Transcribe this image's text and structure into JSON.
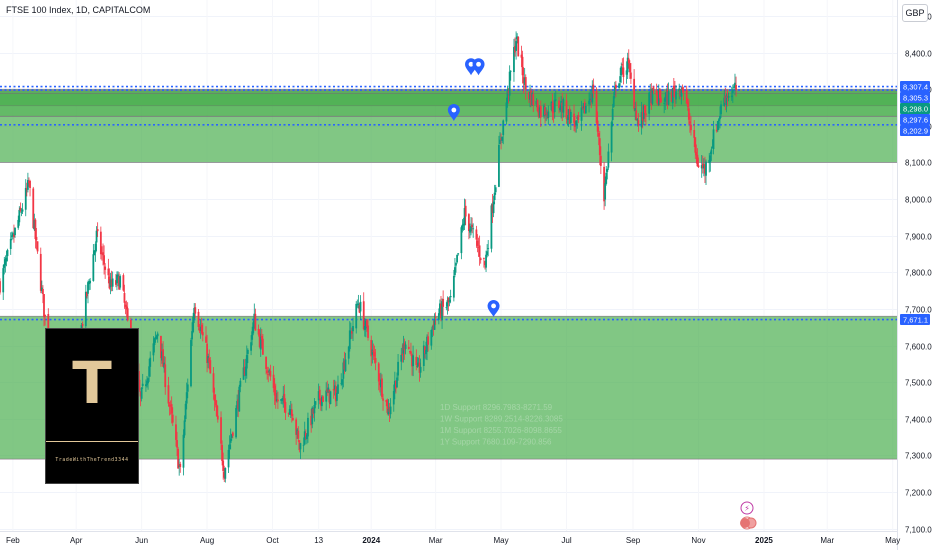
{
  "header": {
    "title": "FTSE 100 Index, 1D, CAPITALCOM",
    "currency": "GBP"
  },
  "logo": {
    "letter": "T",
    "text": "TradeWithTheTrend3344"
  },
  "chart_data": {
    "type": "candlestick",
    "ylim": [
      7080,
      8530
    ],
    "y_ticks": [
      "8,500.0",
      "8,400.0",
      "8,300.0",
      "8,200.0",
      "8,100.0",
      "8,000.0",
      "7,900.0",
      "7,800.0",
      "7,700.0",
      "7,600.0",
      "7,500.0",
      "7,400.0",
      "7,300.0",
      "7,200.0",
      "7,100.0"
    ],
    "x_ticks": [
      "Feb",
      "Apr",
      "Jun",
      "Aug",
      "Oct",
      "13",
      "2024",
      "Mar",
      "May",
      "Jul",
      "Sep",
      "Nov",
      "2025",
      "Mar",
      "May"
    ],
    "x_tick_bold": [
      "2024",
      "2025"
    ],
    "price_labels": [
      {
        "value": 8307.4,
        "text": "8,307.4",
        "color": "#2962ff"
      },
      {
        "value": 8305.3,
        "text": "8,305.3",
        "color": "#2962ff"
      },
      {
        "value": 8298.0,
        "text": "8,298.0",
        "color": "#089981"
      },
      {
        "value": 8297.6,
        "text": "8,297.6",
        "color": "#2962ff"
      },
      {
        "value": 8202.9,
        "text": "8,202.9",
        "color": "#2962ff"
      },
      {
        "value": 7671.1,
        "text": "7,671.1",
        "color": "#2962ff"
      }
    ],
    "dotted_levels": [
      8307.4,
      8297.6,
      8202.9,
      7671.1
    ],
    "zones": [
      {
        "from": 8100,
        "to": 8300,
        "color": "#4caf50",
        "opacity": 0.7
      },
      {
        "from": 8255,
        "to": 8296,
        "color": "#4caf50",
        "opacity": 0.75
      },
      {
        "from": 8226,
        "to": 8289,
        "color": "#4caf50",
        "opacity": 0.55
      },
      {
        "from": 7290,
        "to": 7680,
        "color": "#4caf50",
        "opacity": 0.7
      }
    ],
    "support_text": [
      "1D Support 8296.7983-8271.59",
      "1W Support 8289.2514-8226.3085",
      "1M Support 8255.7026-8098.8655",
      "1Y Support 7680.109-7290.856"
    ],
    "markers": [
      {
        "date": "2024-04-03",
        "value": 8360
      },
      {
        "date": "2024-04-10",
        "value": 8360
      },
      {
        "date": "2024-03-18",
        "value": 8235
      },
      {
        "date": "2024-04-24",
        "value": 7700
      }
    ],
    "start_date": "2023-01-20",
    "end_date": "2025-05-05",
    "last_bar_date": "2024-12-06",
    "anchors": [
      [
        "2023-01-20",
        7770
      ],
      [
        "2023-02-16",
        8040
      ],
      [
        "2023-03-17",
        7330
      ],
      [
        "2023-03-24",
        7420
      ],
      [
        "2023-04-20",
        7900
      ],
      [
        "2023-05-03",
        7760
      ],
      [
        "2023-05-12",
        7780
      ],
      [
        "2023-05-31",
        7450
      ],
      [
        "2023-06-16",
        7640
      ],
      [
        "2023-07-07",
        7250
      ],
      [
        "2023-07-20",
        7720
      ],
      [
        "2023-08-02",
        7560
      ],
      [
        "2023-08-17",
        7260
      ],
      [
        "2023-09-14",
        7670
      ],
      [
        "2023-10-05",
        7450
      ],
      [
        "2023-10-19",
        7430
      ],
      [
        "2023-10-26",
        7320
      ],
      [
        "2023-11-14",
        7460
      ],
      [
        "2023-11-30",
        7470
      ],
      [
        "2023-12-08",
        7570
      ],
      [
        "2023-12-20",
        7720
      ],
      [
        "2024-01-17",
        7420
      ],
      [
        "2024-02-02",
        7620
      ],
      [
        "2024-02-13",
        7520
      ],
      [
        "2024-03-01",
        7680
      ],
      [
        "2024-03-15",
        7720
      ],
      [
        "2024-03-28",
        7960
      ],
      [
        "2024-04-16",
        7820
      ],
      [
        "2024-04-30",
        8150
      ],
      [
        "2024-05-15",
        8440
      ],
      [
        "2024-05-24",
        8300
      ],
      [
        "2024-06-07",
        8240
      ],
      [
        "2024-06-25",
        8260
      ],
      [
        "2024-07-11",
        8200
      ],
      [
        "2024-07-26",
        8300
      ],
      [
        "2024-08-05",
        8010
      ],
      [
        "2024-08-16",
        8320
      ],
      [
        "2024-08-27",
        8370
      ],
      [
        "2024-09-06",
        8200
      ],
      [
        "2024-09-18",
        8280
      ],
      [
        "2024-10-01",
        8270
      ],
      [
        "2024-10-17",
        8310
      ],
      [
        "2024-10-31",
        8100
      ],
      [
        "2024-11-07",
        8080
      ],
      [
        "2024-11-25",
        8280
      ],
      [
        "2024-12-06",
        8300
      ]
    ]
  }
}
